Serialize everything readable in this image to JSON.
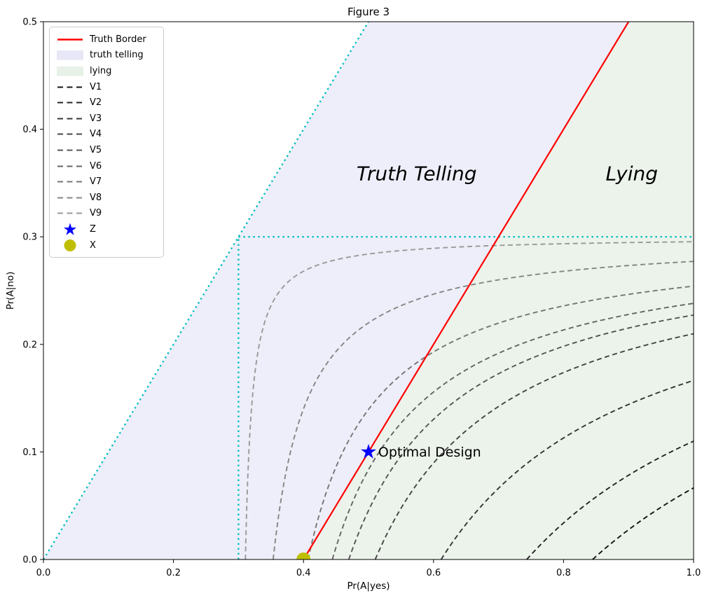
{
  "figure": {
    "title": "Figure 3"
  },
  "chart_data": {
    "type": "line",
    "title": "Figure 3",
    "xlabel": "Pr(A|yes)",
    "ylabel": "Pr(A|no)",
    "xlim": [
      0.0,
      1.0
    ],
    "ylim": [
      0.0,
      0.5
    ],
    "x_ticks": [
      0.0,
      0.2,
      0.4,
      0.6,
      0.8,
      1.0
    ],
    "x_tick_labels": [
      "0.0",
      "0.2",
      "0.4",
      "0.6",
      "0.8",
      "1.0"
    ],
    "y_ticks": [
      0.0,
      0.1,
      0.2,
      0.3,
      0.4,
      0.5
    ],
    "y_tick_labels": [
      "0.0",
      "0.1",
      "0.2",
      "0.3",
      "0.4",
      "0.5"
    ],
    "grid": false,
    "legend_position": "upper left",
    "regions": [
      {
        "name": "truth telling",
        "color": "#eeeefa",
        "polygon": [
          [
            0.0,
            0.0
          ],
          [
            0.4,
            0.0
          ],
          [
            0.9,
            0.5
          ],
          [
            0.5,
            0.5
          ]
        ]
      },
      {
        "name": "lying",
        "color": "#ecf3eb",
        "polygon": [
          [
            0.4,
            0.0
          ],
          [
            1.0,
            0.0
          ],
          [
            1.0,
            0.5
          ],
          [
            0.9,
            0.5
          ]
        ]
      }
    ],
    "truth_border": {
      "label": "Truth Border",
      "color": "#ff0000",
      "from": [
        0.4,
        0.0
      ],
      "to": [
        0.9,
        0.5
      ]
    },
    "guide_lines": [
      {
        "name": "diagonal",
        "style": "dotted",
        "color": "#00bfbf",
        "from": [
          0.0,
          0.0
        ],
        "to": [
          0.5,
          0.5
        ]
      },
      {
        "name": "horizontal",
        "style": "dotted",
        "color": "#00bfbf",
        "from": [
          0.3,
          0.3
        ],
        "to": [
          1.0,
          0.3
        ]
      },
      {
        "name": "vertical",
        "style": "dotted",
        "color": "#00bfbf",
        "from": [
          0.3,
          0.0
        ],
        "to": [
          0.3,
          0.3
        ]
      }
    ],
    "contours": {
      "model": "(x - 0.3) * (0.3 - y) = c",
      "asymptote_x": 0.3,
      "asymptote_y": 0.3,
      "style": "dashed",
      "series": [
        {
          "name": "V1",
          "c": 0.1634,
          "color": "#141414"
        },
        {
          "name": "V2",
          "c": 0.133,
          "color": "#242424"
        },
        {
          "name": "V3",
          "c": 0.0935,
          "color": "#343434"
        },
        {
          "name": "V4",
          "c": 0.0631,
          "color": "#444444"
        },
        {
          "name": "V5",
          "c": 0.0509,
          "color": "#545454"
        },
        {
          "name": "V6",
          "c": 0.0433,
          "color": "#646464"
        },
        {
          "name": "V7",
          "c": 0.0321,
          "color": "#757575"
        },
        {
          "name": "V8",
          "c": 0.016,
          "color": "#858585"
        },
        {
          "name": "V9",
          "c": 0.0032,
          "color": "#999999"
        }
      ]
    },
    "markers": [
      {
        "label": "Z",
        "symbol": "star",
        "x": 0.5,
        "y": 0.1,
        "color": "#0000ff",
        "size": 11.5
      },
      {
        "label": "X",
        "symbol": "circle",
        "x": 0.4,
        "y": 0.0,
        "color": "#bfbf00",
        "size": 10
      }
    ],
    "annotations": [
      {
        "text": "Truth Telling",
        "x": 0.574,
        "y": 0.359,
        "fontsize": 28,
        "italic": true,
        "color": "#000000",
        "anchor": "middle"
      },
      {
        "text": "Lying",
        "x": 0.905,
        "y": 0.359,
        "fontsize": 28,
        "italic": true,
        "color": "#000000",
        "anchor": "middle"
      },
      {
        "text": "Optimal Design",
        "x": 0.515,
        "y": 0.1,
        "fontsize": 19,
        "italic": false,
        "color": "#0000ff",
        "anchor": "start"
      }
    ]
  },
  "legend": {
    "items": [
      {
        "label": "Truth Border",
        "swatch": "line",
        "color": "#ff0000"
      },
      {
        "label": "truth telling",
        "swatch": "patch",
        "color": "#e7e7f7"
      },
      {
        "label": "lying",
        "swatch": "patch",
        "color": "#e7f1e7"
      },
      {
        "label": "V1",
        "swatch": "dash",
        "color": "#141414"
      },
      {
        "label": "V2",
        "swatch": "dash",
        "color": "#242424"
      },
      {
        "label": "V3",
        "swatch": "dash",
        "color": "#343434"
      },
      {
        "label": "V4",
        "swatch": "dash",
        "color": "#444444"
      },
      {
        "label": "V5",
        "swatch": "dash",
        "color": "#545454"
      },
      {
        "label": "V6",
        "swatch": "dash",
        "color": "#646464"
      },
      {
        "label": "V7",
        "swatch": "dash",
        "color": "#757575"
      },
      {
        "label": "V8",
        "swatch": "dash",
        "color": "#858585"
      },
      {
        "label": "V9",
        "swatch": "dash",
        "color": "#999999"
      },
      {
        "label": "Z",
        "swatch": "star",
        "color": "#0000ff"
      },
      {
        "label": "X",
        "swatch": "circle",
        "color": "#bfbf00"
      }
    ]
  }
}
